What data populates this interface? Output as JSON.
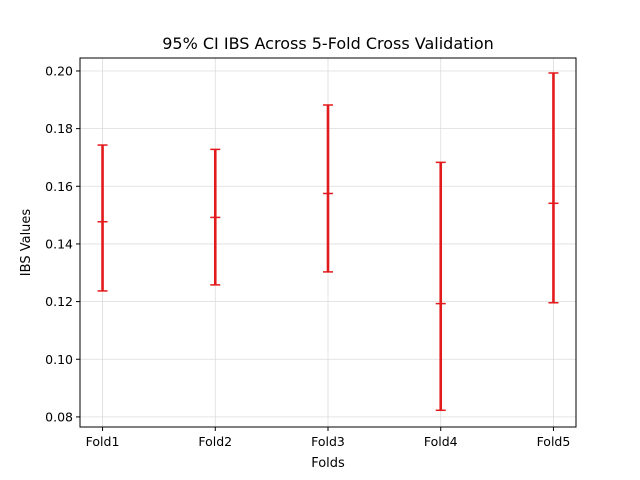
{
  "chart_data": {
    "type": "errorbar",
    "title": "95% CI IBS Across 5-Fold Cross Validation",
    "xlabel": "Folds",
    "ylabel": "IBS Values",
    "categories": [
      "Fold1",
      "Fold2",
      "Fold3",
      "Fold4",
      "Fold5"
    ],
    "series": [
      {
        "color": "#e31a1c",
        "lower": [
          0.1237,
          0.1258,
          0.1303,
          0.0823,
          0.1196
        ],
        "mid": [
          0.1477,
          0.1492,
          0.1575,
          0.1193,
          0.1541
        ],
        "upper": [
          0.1743,
          0.1728,
          0.1882,
          0.1683,
          0.1993
        ]
      }
    ],
    "ylim": [
      0.0765,
      0.2045
    ],
    "yticks": [
      "0.08",
      "0.10",
      "0.12",
      "0.14",
      "0.16",
      "0.18",
      "0.20"
    ],
    "grid": true
  }
}
